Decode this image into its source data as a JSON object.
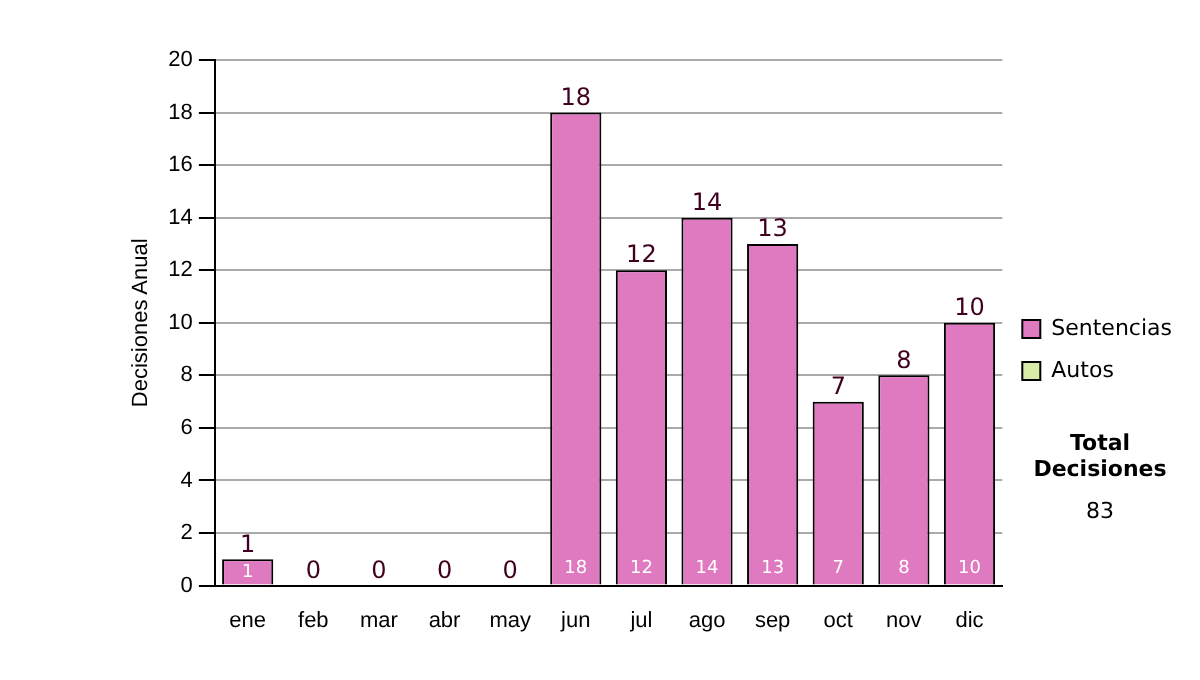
{
  "chart_data": {
    "type": "bar",
    "stacked": true,
    "ylabel": "Decisiones Anual",
    "categories": [
      "ene",
      "feb",
      "mar",
      "abr",
      "may",
      "jun",
      "jul",
      "ago",
      "sep",
      "oct",
      "nov",
      "dic"
    ],
    "series": [
      {
        "name": "Sentencias",
        "color": "#e07ac0",
        "values": [
          1,
          0,
          0,
          0,
          0,
          18,
          12,
          14,
          13,
          7,
          8,
          10
        ],
        "value_labels": [
          "1",
          null,
          null,
          null,
          null,
          "18",
          "12",
          "14",
          "13",
          "7",
          "8",
          "10"
        ]
      },
      {
        "name": "Autos",
        "color": "#d8eca8",
        "values": [
          0,
          0,
          0,
          0,
          0,
          0,
          0,
          0,
          0,
          0,
          0,
          0
        ]
      }
    ],
    "totals": [
      "1",
      "0",
      "0",
      "0",
      "0",
      "18",
      "12",
      "14",
      "13",
      "7",
      "8",
      "10"
    ],
    "ylim": [
      0,
      20
    ],
    "yticks": [
      0,
      2,
      4,
      6,
      8,
      10,
      12,
      14,
      16,
      18,
      20
    ],
    "grid": "y",
    "legend": "right",
    "annotations": [
      "Total Decisiones",
      "83"
    ]
  }
}
